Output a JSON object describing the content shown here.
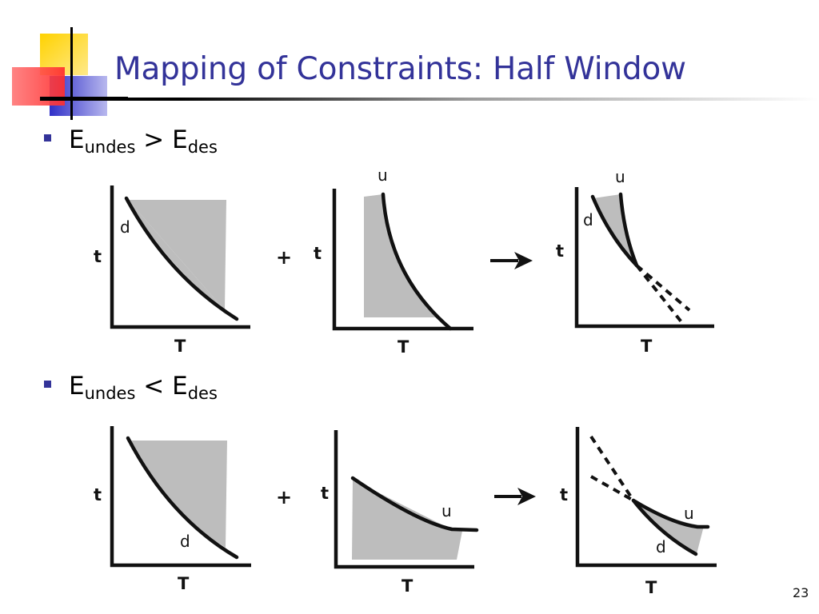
{
  "slide": {
    "title": "Mapping of Constraints: Half Window",
    "page_number": "23",
    "accent_color": "#333399"
  },
  "bullets": [
    {
      "base": "E",
      "sub1": "undes",
      "operator": ">",
      "base2": "E",
      "sub2": "des"
    },
    {
      "base": "E",
      "sub1": "undes",
      "operator": "<",
      "base2": "E",
      "sub2": "des"
    }
  ],
  "diagram_rows": [
    {
      "plus": "+",
      "arrow_icon": "right-arrow-icon",
      "panels": [
        {
          "t_label": "t",
          "T_label": "T",
          "curve_label": "d"
        },
        {
          "t_label": "t",
          "T_label": "T",
          "curve_label": "u"
        },
        {
          "t_label": "t",
          "T_label": "T",
          "curve_label_d": "d",
          "curve_label_u": "u"
        }
      ]
    },
    {
      "plus": "+",
      "arrow_icon": "right-arrow-icon",
      "panels": [
        {
          "t_label": "t",
          "T_label": "T",
          "curve_label": "d"
        },
        {
          "t_label": "t",
          "T_label": "T",
          "curve_label": "u"
        },
        {
          "t_label": "t",
          "T_label": "T",
          "curve_label_d": "d",
          "curve_label_u": "u"
        }
      ]
    }
  ]
}
